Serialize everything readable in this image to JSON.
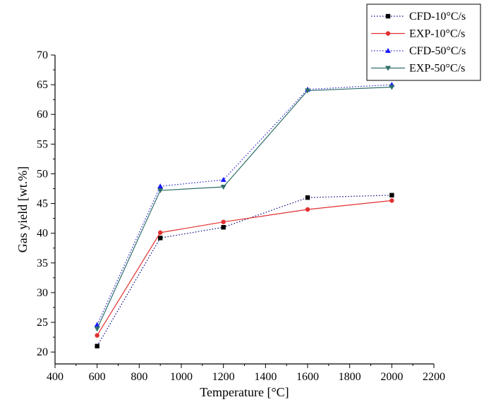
{
  "chart_data": {
    "type": "line",
    "xlabel": "Temperature [°C]",
    "ylabel": "Gas yield [wt.%]",
    "xlim": [
      400,
      2200
    ],
    "ylim": [
      18,
      70
    ],
    "xticks": [
      400,
      600,
      800,
      1000,
      1200,
      1400,
      1600,
      1800,
      2000,
      2200
    ],
    "yticks": [
      20,
      25,
      30,
      35,
      40,
      45,
      50,
      55,
      60,
      65,
      70
    ],
    "grid": false,
    "legend_position": "top-right",
    "series": [
      {
        "name": "CFD-10°C/s",
        "x": [
          600,
          900,
          1200,
          1600,
          2000
        ],
        "y": [
          21.0,
          39.2,
          41.0,
          46.0,
          46.4
        ],
        "color": "#000080",
        "line_style": "dotted",
        "marker": "square",
        "marker_color": "#000000"
      },
      {
        "name": "EXP-10°C/s",
        "x": [
          600,
          900,
          1200,
          1600,
          2000
        ],
        "y": [
          22.8,
          40.1,
          41.9,
          44.0,
          45.5
        ],
        "color": "#e23030",
        "line_style": "solid",
        "marker": "circle",
        "marker_color": "#e23030"
      },
      {
        "name": "CFD-50°C/s",
        "x": [
          600,
          900,
          1200,
          1600,
          2000
        ],
        "y": [
          24.6,
          47.9,
          49.0,
          64.2,
          65.0
        ],
        "color": "#2020d0",
        "line_style": "dotted",
        "marker": "triangle-up",
        "marker_color": "#1a1aff"
      },
      {
        "name": "EXP-50°C/s",
        "x": [
          600,
          900,
          1200,
          1600,
          2000
        ],
        "y": [
          23.9,
          47.2,
          47.8,
          64.0,
          64.6
        ],
        "color": "#2f6f6a",
        "line_style": "solid",
        "marker": "triangle-down",
        "marker_color": "#2f6f6a"
      }
    ]
  }
}
